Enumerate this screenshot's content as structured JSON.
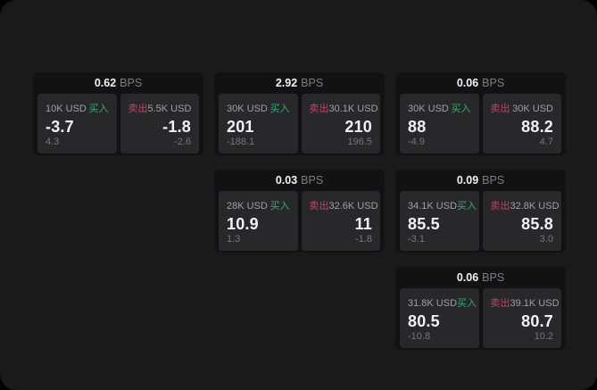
{
  "labels": {
    "bps_unit": "BPS",
    "buy": "买入",
    "sell": "卖出"
  },
  "colors": {
    "page-bg": "#1a1a1b",
    "card-bg": "#121213",
    "panel-bg": "#28282b",
    "buy-accent": "#2fae6b",
    "sell-accent": "#c04363",
    "text-primary": "#f2f2f4",
    "text-label": "#9fa0a5",
    "text-muted": "#75767b",
    "bps-unit-color": "#7d7e83"
  },
  "cards": [
    {
      "bps": "0.62",
      "buy": {
        "amount": "10K USD",
        "price": "-3.7",
        "delta": "4.3"
      },
      "sell": {
        "amount": "5.5K USD",
        "price": "-1.8",
        "delta": "-2.6"
      }
    },
    {
      "bps": "2.92",
      "buy": {
        "amount": "30K USD",
        "price": "201",
        "delta": "-188.1"
      },
      "sell": {
        "amount": "30.1K USD",
        "price": "210",
        "delta": "196.5"
      }
    },
    {
      "bps": "0.06",
      "buy": {
        "amount": "30K USD",
        "price": "88",
        "delta": "-4.9"
      },
      "sell": {
        "amount": "30K USD",
        "price": "88.2",
        "delta": "4.7"
      }
    },
    {
      "bps": "0.03",
      "buy": {
        "amount": "28K USD",
        "price": "10.9",
        "delta": "1.3"
      },
      "sell": {
        "amount": "32.6K USD",
        "price": "11",
        "delta": "-1.8"
      }
    },
    {
      "bps": "0.09",
      "buy": {
        "amount": "34.1K USD",
        "price": "85.5",
        "delta": "-3.1"
      },
      "sell": {
        "amount": "32.8K USD",
        "price": "85.8",
        "delta": "3.0"
      }
    },
    {
      "bps": "0.06",
      "buy": {
        "amount": "31.8K USD",
        "price": "80.5",
        "delta": "-10.8"
      },
      "sell": {
        "amount": "39.1K USD",
        "price": "80.7",
        "delta": "10.2"
      }
    }
  ]
}
